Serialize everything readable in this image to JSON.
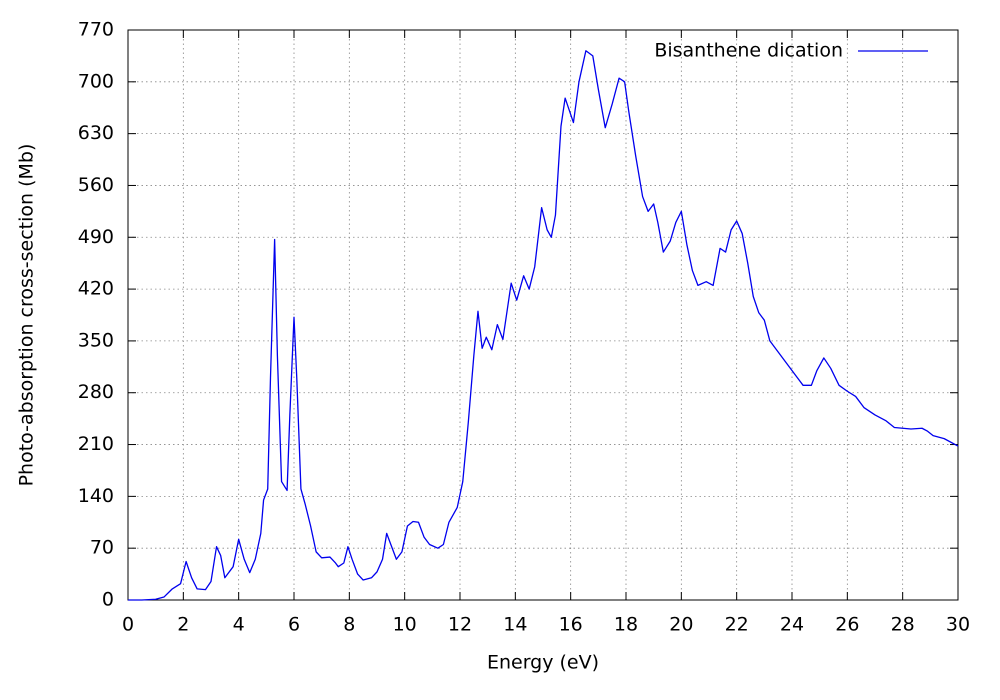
{
  "chart_data": {
    "type": "line",
    "xlabel": "Energy (eV)",
    "ylabel": "Photo-absorption cross-section (Mb)",
    "x": [
      0,
      0.5,
      1,
      1.3,
      1.6,
      1.9,
      2.1,
      2.3,
      2.5,
      2.8,
      3.0,
      3.2,
      3.35,
      3.5,
      3.8,
      4.0,
      4.2,
      4.4,
      4.6,
      4.8,
      4.9,
      5.05,
      5.15,
      5.3,
      5.4,
      5.55,
      5.75,
      5.85,
      6.0,
      6.1,
      6.25,
      6.4,
      6.6,
      6.8,
      7.0,
      7.3,
      7.5,
      7.6,
      7.8,
      7.95,
      8.1,
      8.3,
      8.5,
      8.8,
      9.0,
      9.2,
      9.35,
      9.5,
      9.7,
      9.9,
      10.1,
      10.3,
      10.5,
      10.7,
      10.9,
      11.2,
      11.4,
      11.6,
      11.9,
      12.1,
      12.3,
      12.5,
      12.65,
      12.8,
      12.95,
      13.15,
      13.35,
      13.55,
      13.7,
      13.85,
      14.05,
      14.3,
      14.5,
      14.7,
      14.95,
      15.15,
      15.3,
      15.45,
      15.65,
      15.8,
      16.1,
      16.3,
      16.55,
      16.8,
      17.0,
      17.25,
      17.5,
      17.75,
      17.95,
      18.1,
      18.35,
      18.6,
      18.8,
      19.0,
      19.15,
      19.35,
      19.6,
      19.8,
      20.0,
      20.2,
      20.4,
      20.6,
      20.9,
      21.15,
      21.4,
      21.6,
      21.8,
      22.0,
      22.2,
      22.4,
      22.6,
      22.8,
      23.0,
      23.2,
      23.5,
      23.8,
      24.1,
      24.4,
      24.7,
      24.9,
      25.15,
      25.4,
      25.7,
      26.0,
      26.3,
      26.6,
      27.0,
      27.4,
      27.7,
      28.0,
      28.3,
      28.7,
      28.9,
      29.1,
      29.5,
      30
    ],
    "series": [
      {
        "name": "Bisanthene dication",
        "color": "#0000ee",
        "values": [
          0,
          0,
          1,
          4,
          15,
          22,
          52,
          30,
          15,
          14,
          25,
          72,
          60,
          30,
          45,
          82,
          55,
          37,
          55,
          90,
          135,
          150,
          300,
          487,
          330,
          160,
          148,
          250,
          382,
          300,
          150,
          130,
          100,
          65,
          57,
          58,
          50,
          45,
          50,
          72,
          55,
          35,
          27,
          30,
          38,
          55,
          90,
          75,
          55,
          65,
          100,
          106,
          105,
          85,
          75,
          70,
          75,
          105,
          125,
          160,
          240,
          330,
          390,
          340,
          355,
          338,
          372,
          352,
          390,
          428,
          405,
          438,
          420,
          450,
          530,
          500,
          490,
          520,
          640,
          678,
          645,
          700,
          742,
          735,
          690,
          638,
          670,
          705,
          700,
          660,
          600,
          545,
          525,
          535,
          510,
          470,
          485,
          510,
          525,
          480,
          445,
          425,
          430,
          425,
          475,
          470,
          500,
          512,
          495,
          455,
          410,
          388,
          378,
          350,
          335,
          320,
          305,
          290,
          290,
          310,
          327,
          313,
          290,
          282,
          275,
          260,
          250,
          242,
          233,
          232,
          231,
          232,
          228,
          222,
          218,
          208
        ]
      }
    ],
    "xlim": [
      0,
      30
    ],
    "ylim": [
      0,
      770
    ],
    "xticks": [
      0,
      2,
      4,
      6,
      8,
      10,
      12,
      14,
      16,
      18,
      20,
      22,
      24,
      26,
      28,
      30
    ],
    "yticks": [
      0,
      70,
      140,
      210,
      280,
      350,
      420,
      490,
      560,
      630,
      700,
      770
    ],
    "grid": true,
    "legend": "top-right"
  }
}
